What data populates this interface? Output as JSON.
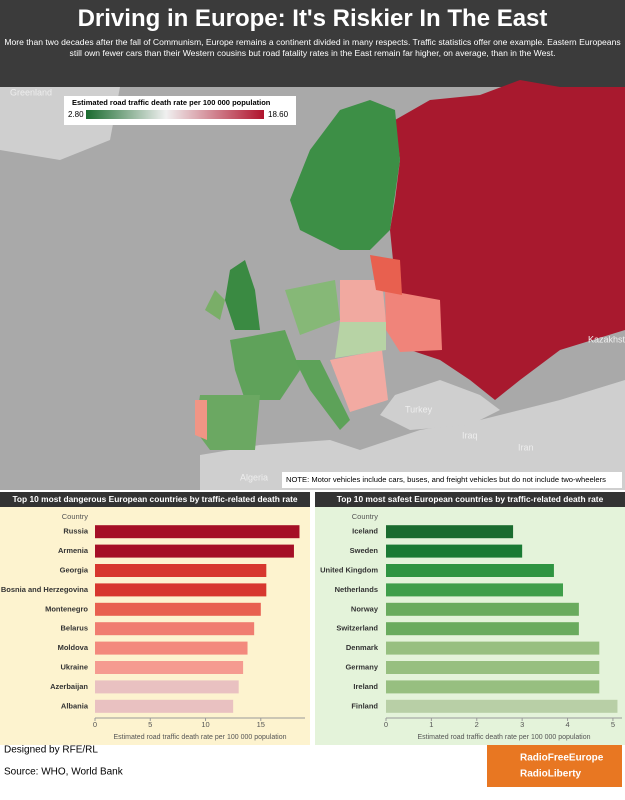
{
  "header": {
    "title": "Driving in Europe: It's Riskier In The East",
    "subtitle": "More than two decades after the fall of Communism, Europe remains a continent divided in many respects. Traffic statistics offer one example. Eastern Europeans still own fewer cars than their Western cousins but road fatality rates in the East remain far higher, on average, than in the West."
  },
  "map": {
    "legend_title": "Estimated road traffic death rate per 100 000 population",
    "legend_min": "2.80",
    "legend_max": "18.60",
    "labels": [
      "Greenland",
      "Kazakhstan",
      "Turkey",
      "Iraq",
      "Iran",
      "Algeria"
    ],
    "note": "NOTE: Motor vehicles include cars, buses, and freight vehicles but do not include two-wheelers"
  },
  "chart_data": [
    {
      "type": "bar",
      "title": "Top 10 most dangerous European countries by traffic-related death rate",
      "category_header": "Country",
      "xlabel": "Estimated road traffic death rate per 100 000 population",
      "categories": [
        "Russia",
        "Armenia",
        "Georgia",
        "Bosnia and Herzegovina",
        "Montenegro",
        "Belarus",
        "Moldova",
        "Ukraine",
        "Azerbaijan",
        "Albania"
      ],
      "values": [
        18.5,
        18.0,
        15.5,
        15.5,
        15.0,
        14.4,
        13.8,
        13.4,
        13.0,
        12.5
      ],
      "colors": [
        "#a50f26",
        "#a50f26",
        "#d7372e",
        "#d7372e",
        "#e8604f",
        "#f07d70",
        "#f3897d",
        "#f59b90",
        "#e9c1c1",
        "#e9c1c1"
      ],
      "xlim": [
        0,
        19
      ],
      "xticks": [
        0,
        5,
        10,
        15
      ]
    },
    {
      "type": "bar",
      "title": "Top 10 most safest European countries by traffic-related death rate",
      "category_header": "Country",
      "xlabel": "Estimated road traffic death rate per 100 000 population",
      "categories": [
        "Iceland",
        "Sweden",
        "United Kingdom",
        "Netherlands",
        "Norway",
        "Switzerland",
        "Denmark",
        "Germany",
        "Ireland",
        "Finland"
      ],
      "values": [
        2.8,
        3.0,
        3.7,
        3.9,
        4.25,
        4.25,
        4.7,
        4.7,
        4.7,
        5.1
      ],
      "colors": [
        "#1a6b2f",
        "#1a7a34",
        "#2e9441",
        "#3f9e4a",
        "#6aab5e",
        "#6aab5e",
        "#97bf80",
        "#97bf80",
        "#97bf80",
        "#b8cfa6"
      ],
      "xlim": [
        0,
        5.2
      ],
      "xticks": [
        0,
        1,
        2,
        3,
        4,
        5
      ]
    }
  ],
  "footer": {
    "designed": "Designed by RFE/RL",
    "source": "Source: WHO, World Bank",
    "logo_1": "RadioFreeEurope",
    "logo_2": "RadioLiberty"
  }
}
